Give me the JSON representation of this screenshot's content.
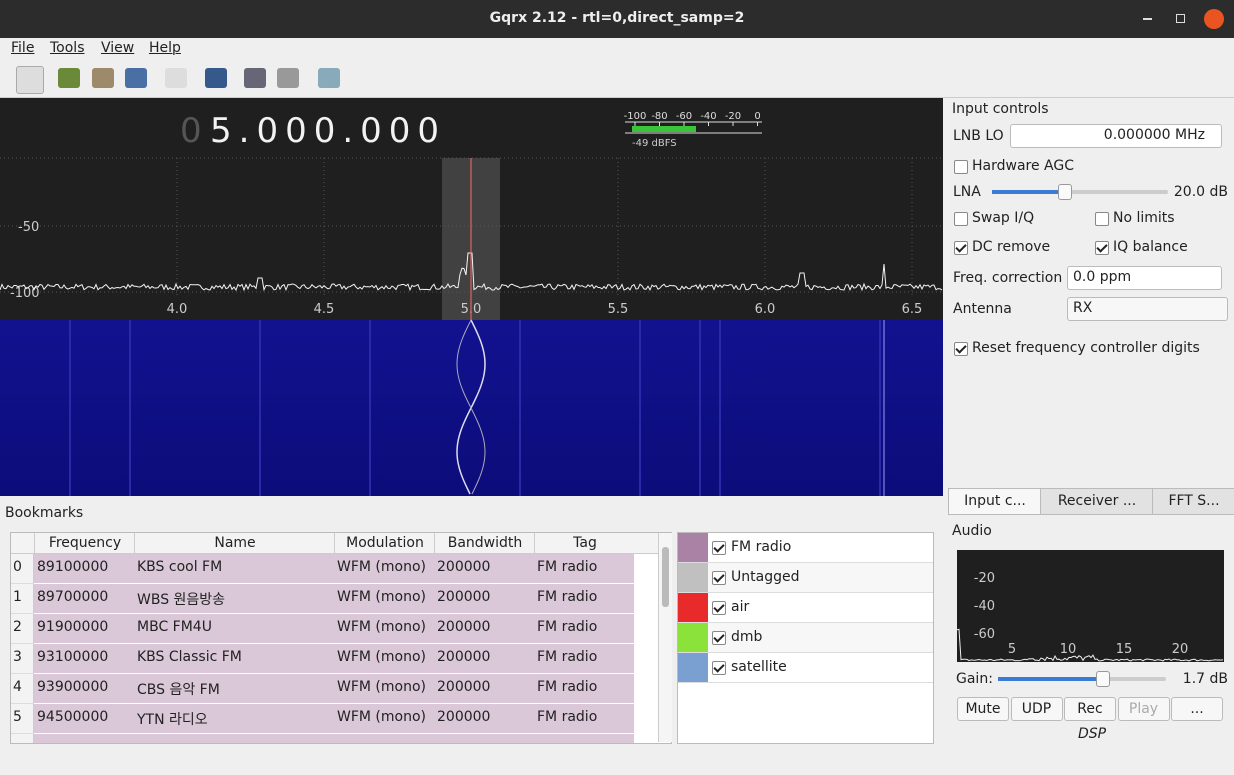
{
  "window": {
    "title": "Gqrx 2.12 - rtl=0,direct_samp=2"
  },
  "menu": [
    "File",
    "Tools",
    "View",
    "Help"
  ],
  "frequency": {
    "leading": "0",
    "value": "5.000.000"
  },
  "meter": {
    "ticks": [
      "-100",
      "-80",
      "-60",
      "-40",
      "-20",
      "0"
    ],
    "level": "-49 dBFS"
  },
  "spectrum": {
    "y_labels": [
      "-50",
      "-100"
    ],
    "x_labels": [
      "4.0",
      "4.5",
      "5.0",
      "5.5",
      "6.0",
      "6.5"
    ]
  },
  "input_controls": {
    "title": "Input controls",
    "lnb_lo_label": "LNB LO",
    "lnb_lo_value": "0.000000 MHz",
    "hardware_agc": "Hardware AGC",
    "lna_label": "LNA",
    "lna_value": "20.0 dB",
    "swap_iq": "Swap I/Q",
    "no_limits": "No limits",
    "dc_remove": "DC remove",
    "iq_balance": "IQ balance",
    "freq_corr_label": "Freq. correction",
    "freq_corr_value": "0.0 ppm",
    "antenna_label": "Antenna",
    "antenna_value": "RX",
    "reset_digits": "Reset frequency controller digits"
  },
  "tabs": [
    "Input c...",
    "Receiver ...",
    "FFT S..."
  ],
  "bookmarks": {
    "title": "Bookmarks",
    "columns": [
      "Frequency",
      "Name",
      "Modulation",
      "Bandwidth",
      "Tag"
    ],
    "rows": [
      [
        "0",
        "89100000",
        "KBS cool FM",
        "WFM (mono)",
        "200000",
        "FM radio"
      ],
      [
        "1",
        "89700000",
        "WBS 원음방송",
        "WFM (mono)",
        "200000",
        "FM radio"
      ],
      [
        "2",
        "91900000",
        "MBC FM4U",
        "WFM (mono)",
        "200000",
        "FM radio"
      ],
      [
        "3",
        "93100000",
        "KBS Classic FM",
        "WFM (mono)",
        "200000",
        "FM radio"
      ],
      [
        "4",
        "93900000",
        "CBS 음악 FM",
        "WFM (mono)",
        "200000",
        "FM radio"
      ],
      [
        "5",
        "94500000",
        "YTN 라디오",
        "WFM (mono)",
        "200000",
        "FM radio"
      ]
    ]
  },
  "tags": [
    {
      "name": "FM radio",
      "color": "#a982a6"
    },
    {
      "name": "Untagged",
      "color": "#c0c0c0"
    },
    {
      "name": "air",
      "color": "#e82a2a"
    },
    {
      "name": "dmb",
      "color": "#8ae23a"
    },
    {
      "name": "satellite",
      "color": "#7aa0d2"
    }
  ],
  "audio": {
    "title": "Audio",
    "y_labels": [
      "-20",
      "-40",
      "-60"
    ],
    "x_labels": [
      "5",
      "10",
      "15",
      "20"
    ],
    "gain_label": "Gain:",
    "gain_value": "1.7 dB",
    "buttons": [
      "Mute",
      "UDP",
      "Rec",
      "Play",
      "..."
    ],
    "dsp": "DSP"
  }
}
